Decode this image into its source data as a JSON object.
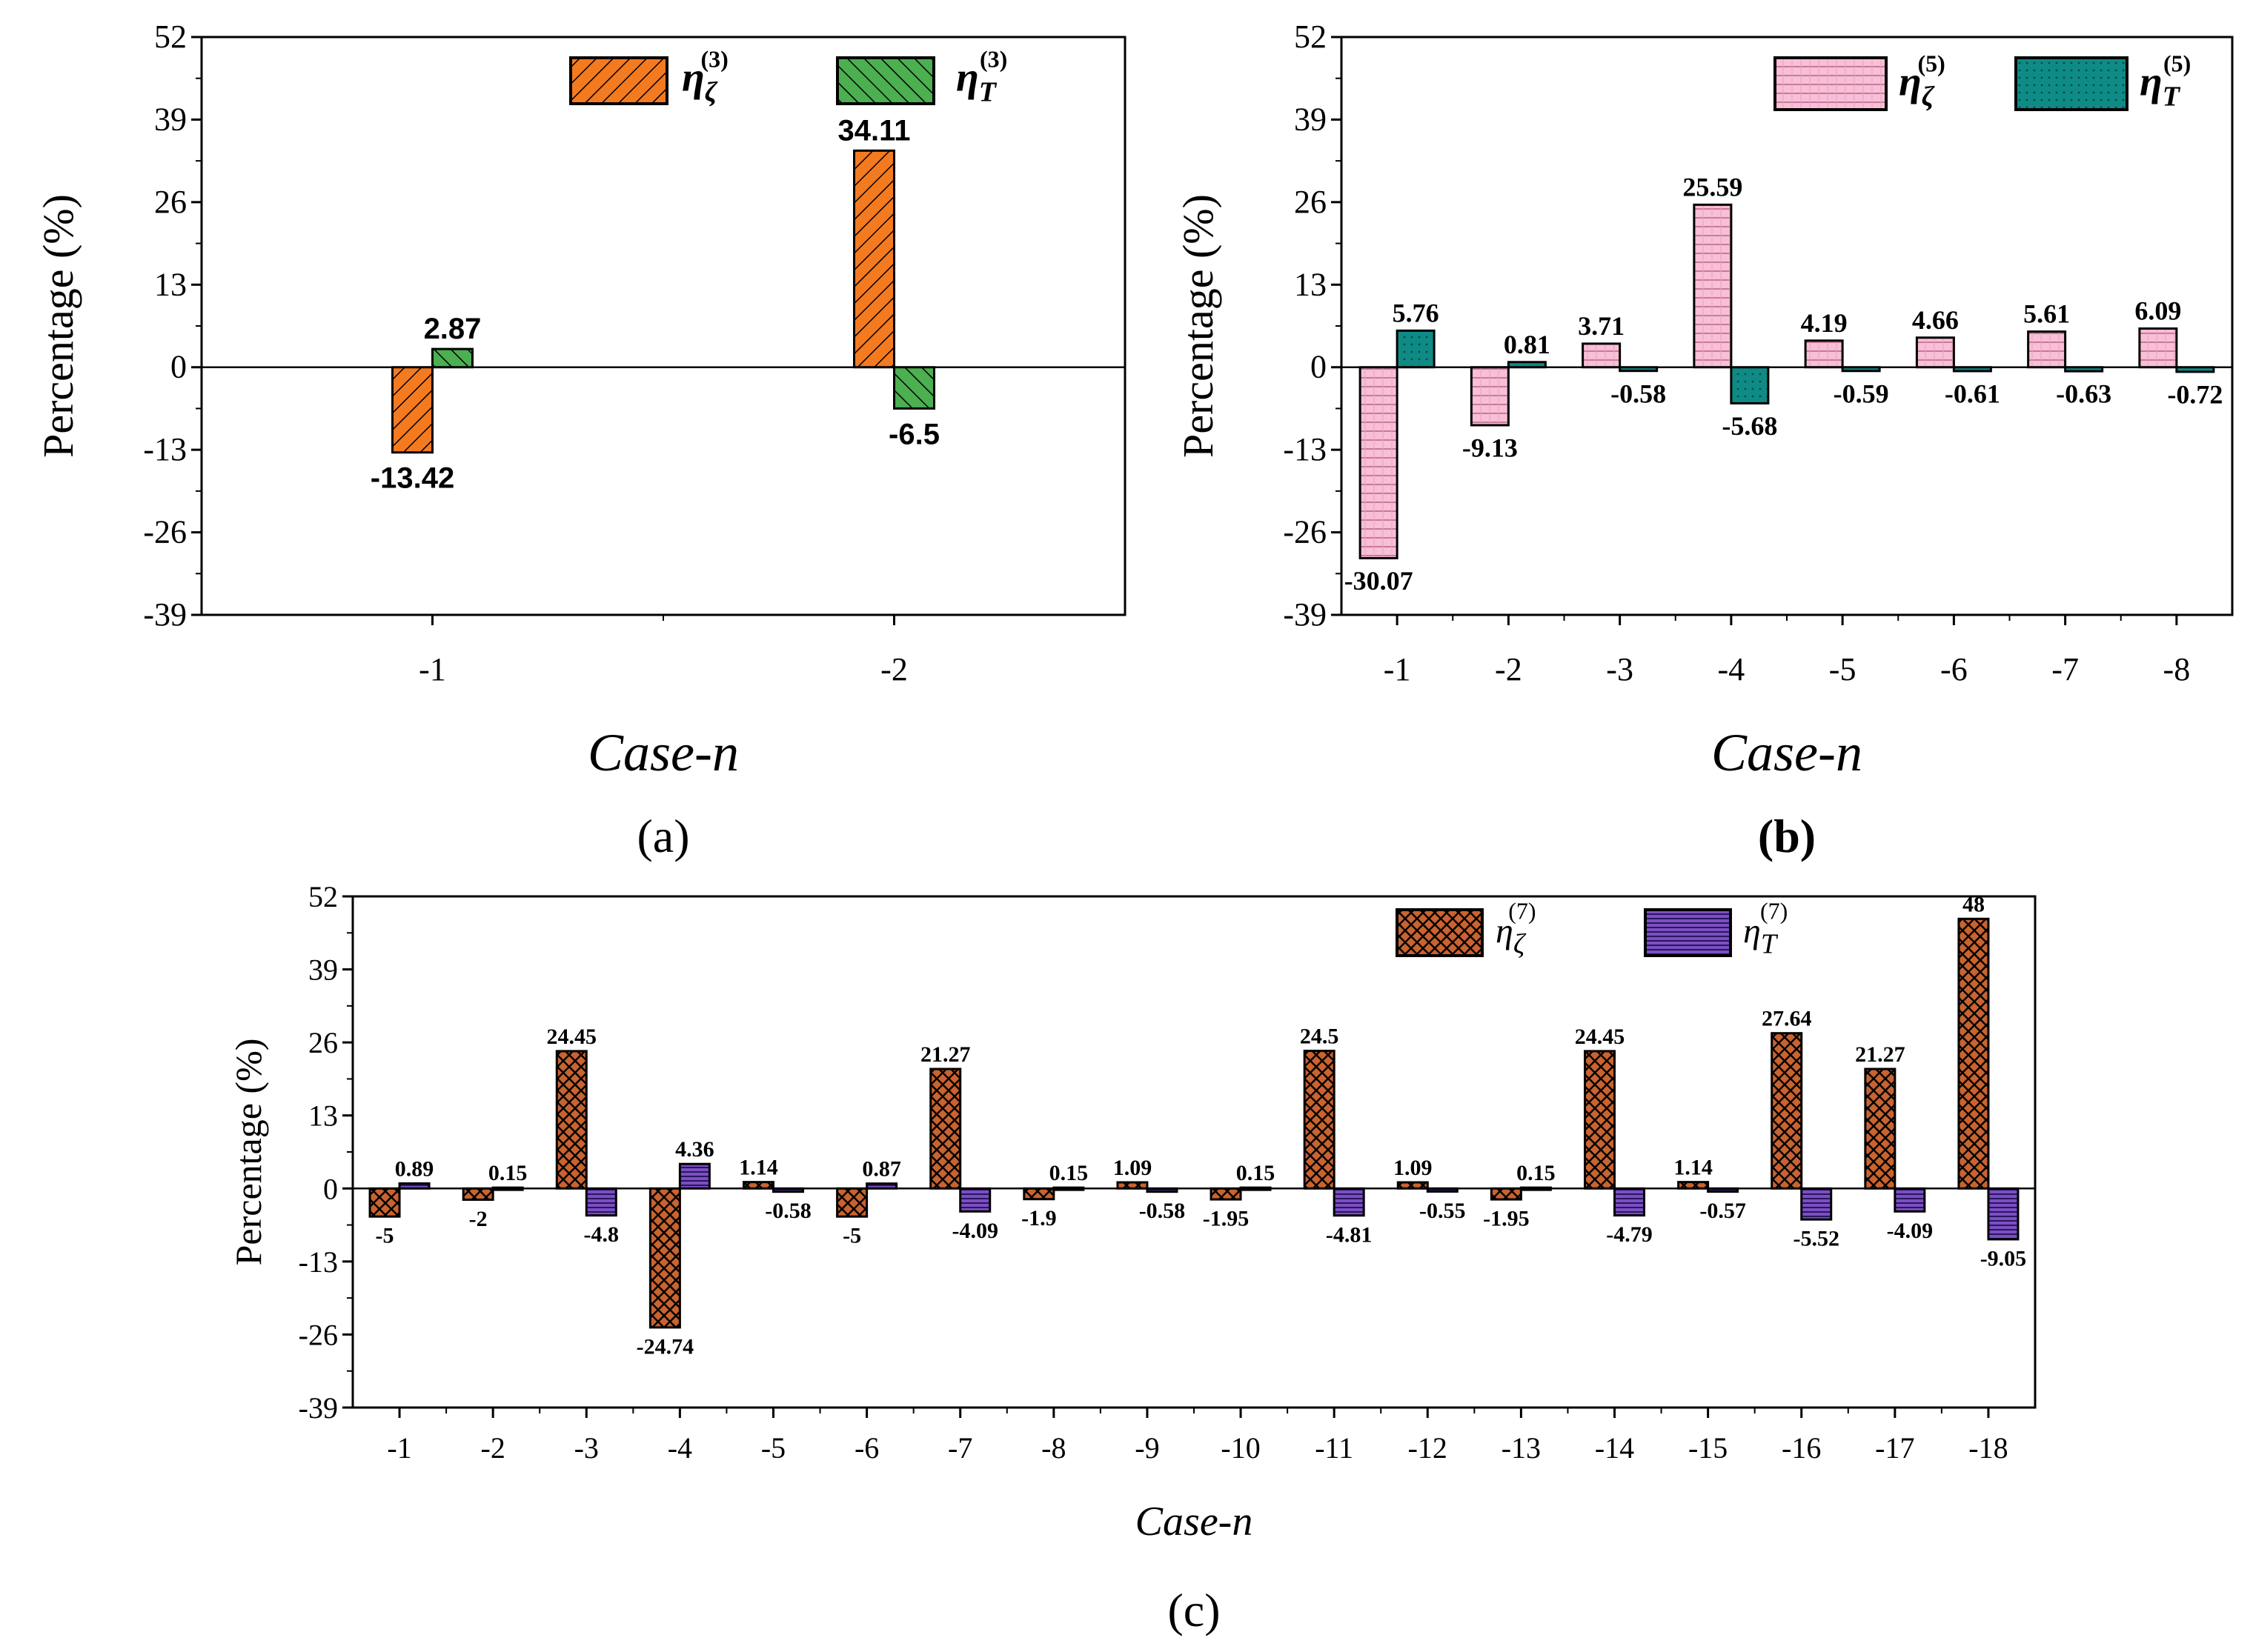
{
  "chart_data": [
    {
      "id": "a",
      "type": "bar",
      "panel_label": "(a)",
      "categories": [
        "-1",
        "-2"
      ],
      "series": [
        {
          "name": "eta_zeta_3",
          "legend_base": "η",
          "legend_sub": "ζ",
          "legend_sup": "(3)",
          "color": "#f47a20",
          "values": [
            -13.42,
            34.11
          ],
          "labels": [
            "-13.42",
            "34.11"
          ]
        },
        {
          "name": "eta_T_3",
          "legend_base": "η",
          "legend_sub": "T",
          "legend_sup": "(3)",
          "color": "#4caf50",
          "values": [
            2.87,
            -6.5
          ],
          "labels": [
            "2.87",
            "-6.5"
          ]
        }
      ],
      "xlabel": "Case-n",
      "ylabel": "Percentage (%)",
      "ylim": [
        -39,
        52
      ],
      "yticks": [
        52,
        39,
        26,
        13,
        0,
        -13,
        -26,
        -39
      ],
      "legend_position": "top-right"
    },
    {
      "id": "b",
      "type": "bar",
      "panel_label": "(b)",
      "categories": [
        "-1",
        "-2",
        "-3",
        "-4",
        "-5",
        "-6",
        "-7",
        "-8"
      ],
      "series": [
        {
          "name": "eta_zeta_5",
          "legend_base": "η",
          "legend_sub": "ζ",
          "legend_sup": "(5)",
          "color": "#f8bfd6",
          "values": [
            -30.07,
            -9.13,
            3.71,
            25.59,
            4.19,
            4.66,
            5.61,
            6.09
          ],
          "labels": [
            "-30.07",
            "-9.13",
            "3.71",
            "25.59",
            "4.19",
            "4.66",
            "5.61",
            "6.09"
          ]
        },
        {
          "name": "eta_T_5",
          "legend_base": "η",
          "legend_sub": "T",
          "legend_sup": "(5)",
          "color": "#0f8b86",
          "values": [
            5.76,
            0.81,
            -0.58,
            -5.68,
            -0.59,
            -0.61,
            -0.63,
            -0.72
          ],
          "labels": [
            "5.76",
            "0.81",
            "-0.58",
            "-5.68",
            "-0.59",
            "-0.61",
            "-0.63",
            "-0.72"
          ]
        }
      ],
      "xlabel": "Case-n",
      "ylabel": "Percentage (%)",
      "ylim": [
        -39,
        52
      ],
      "yticks": [
        52,
        39,
        26,
        13,
        0,
        -13,
        -26,
        -39
      ],
      "legend_position": "top-right"
    },
    {
      "id": "c",
      "type": "bar",
      "panel_label": "(c)",
      "categories": [
        "-1",
        "-2",
        "-3",
        "-4",
        "-5",
        "-6",
        "-7",
        "-8",
        "-9",
        "-10",
        "-11",
        "-12",
        "-13",
        "-14",
        "-15",
        "-16",
        "-17",
        "-18"
      ],
      "series": [
        {
          "name": "eta_zeta_7",
          "legend_base": "η",
          "legend_sub": "ζ",
          "legend_sup": "(7)",
          "color": "#c9632f",
          "values": [
            -5,
            -2,
            24.45,
            -24.74,
            1.14,
            -5,
            21.27,
            -1.9,
            1.09,
            -1.95,
            24.5,
            1.09,
            -1.95,
            24.45,
            1.14,
            27.64,
            21.27,
            48
          ],
          "labels": [
            "-5",
            "-2",
            "24.45",
            "-24.74",
            "1.14",
            "-5",
            "21.27",
            "-1.9",
            "1.09",
            "-1.95",
            "24.5",
            "1.09",
            "-1.95",
            "24.45",
            "1.14",
            "27.64",
            "21.27",
            "48"
          ]
        },
        {
          "name": "eta_T_7",
          "legend_base": "η",
          "legend_sub": "T",
          "legend_sup": "(7)",
          "color": "#7b4fc2",
          "values": [
            0.89,
            0.15,
            -4.8,
            4.36,
            -0.58,
            0.87,
            -4.09,
            0.15,
            -0.58,
            0.15,
            -4.81,
            -0.55,
            0.15,
            -4.79,
            -0.57,
            -5.52,
            -4.09,
            -9.05
          ],
          "labels": [
            "0.89",
            "0.15",
            "-4.8",
            "4.36",
            "-0.58",
            "0.87",
            "-4.09",
            "0.15",
            "-0.58",
            "0.15",
            "-4.81",
            "-0.55",
            "0.15",
            "-4.79",
            "-0.57",
            "-5.52",
            "-4.09",
            "-9.05"
          ]
        }
      ],
      "xlabel": "Case-n",
      "ylabel": "Percentage (%)",
      "ylim": [
        -39,
        52
      ],
      "yticks": [
        52,
        39,
        26,
        13,
        0,
        -13,
        -26,
        -39
      ],
      "legend_position": "top-right"
    }
  ]
}
